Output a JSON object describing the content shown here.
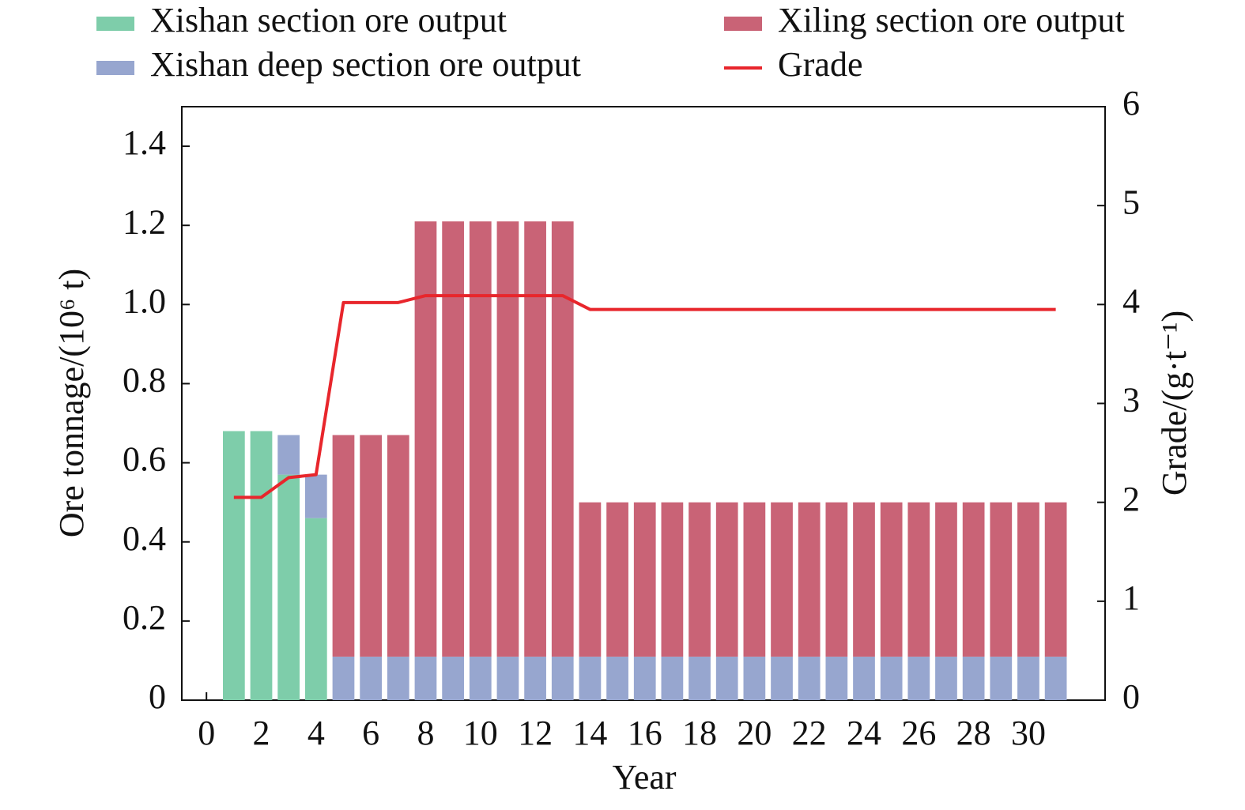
{
  "chart_data": {
    "type": "bar",
    "x_label": "Year",
    "y_label": "Ore tonnage/(10⁶ t)",
    "y2_label": "Grade/(g·t⁻¹)",
    "x": [
      1,
      2,
      3,
      4,
      5,
      6,
      7,
      8,
      9,
      10,
      11,
      12,
      13,
      14,
      15,
      16,
      17,
      18,
      19,
      20,
      21,
      22,
      23,
      24,
      25,
      26,
      27,
      28,
      29,
      30,
      31
    ],
    "series": [
      {
        "name": "Xishan section ore output",
        "color": "#7ecdaa",
        "type": "bar",
        "values": [
          0.68,
          0.68,
          0.57,
          0.46,
          null,
          null,
          null,
          null,
          null,
          null,
          null,
          null,
          null,
          null,
          null,
          null,
          null,
          null,
          null,
          null,
          null,
          null,
          null,
          null,
          null,
          null,
          null,
          null,
          null,
          null,
          null
        ]
      },
      {
        "name": "Xishan deep section ore output",
        "color": "#97a6cf",
        "type": "bar",
        "values": [
          null,
          null,
          0.1,
          0.11,
          0.11,
          0.11,
          0.11,
          0.11,
          0.11,
          0.11,
          0.11,
          0.11,
          0.11,
          0.11,
          0.11,
          0.11,
          0.11,
          0.11,
          0.11,
          0.11,
          0.11,
          0.11,
          0.11,
          0.11,
          0.11,
          0.11,
          0.11,
          0.11,
          0.11,
          0.11,
          0.11
        ]
      },
      {
        "name": "Xiling section ore output",
        "color": "#c96376",
        "type": "bar",
        "values": [
          null,
          null,
          null,
          null,
          0.56,
          0.56,
          0.56,
          1.1,
          1.1,
          1.1,
          1.1,
          1.1,
          1.1,
          0.39,
          0.39,
          0.39,
          0.39,
          0.39,
          0.39,
          0.39,
          0.39,
          0.39,
          0.39,
          0.39,
          0.39,
          0.39,
          0.39,
          0.39,
          0.39,
          0.39,
          0.39
        ]
      },
      {
        "name": "Grade",
        "color": "#e8262c",
        "type": "line",
        "axis": "y2",
        "values": [
          2.05,
          2.05,
          2.25,
          2.28,
          4.02,
          4.02,
          4.02,
          4.09,
          4.09,
          4.09,
          4.09,
          4.09,
          4.09,
          3.95,
          3.95,
          3.95,
          3.95,
          3.95,
          3.95,
          3.95,
          3.95,
          3.95,
          3.95,
          3.95,
          3.95,
          3.95,
          3.95,
          3.95,
          3.95,
          3.95,
          3.95
        ]
      }
    ],
    "xlim": [
      -0.9,
      32.8
    ],
    "xticks": [
      0,
      2,
      4,
      6,
      8,
      10,
      12,
      14,
      16,
      18,
      20,
      22,
      24,
      26,
      28,
      30
    ],
    "ylim": [
      0,
      1.5
    ],
    "yticks": [
      0,
      0.2,
      0.4,
      0.6,
      0.8,
      {
        "value": 1,
        "label": "1.0"
      },
      1.2,
      1.4
    ],
    "y2lim": [
      0,
      6
    ],
    "y2ticks": [
      0,
      1,
      2,
      3,
      4,
      5,
      6
    ],
    "stacked": true,
    "grid": false,
    "legend_position": "top"
  }
}
